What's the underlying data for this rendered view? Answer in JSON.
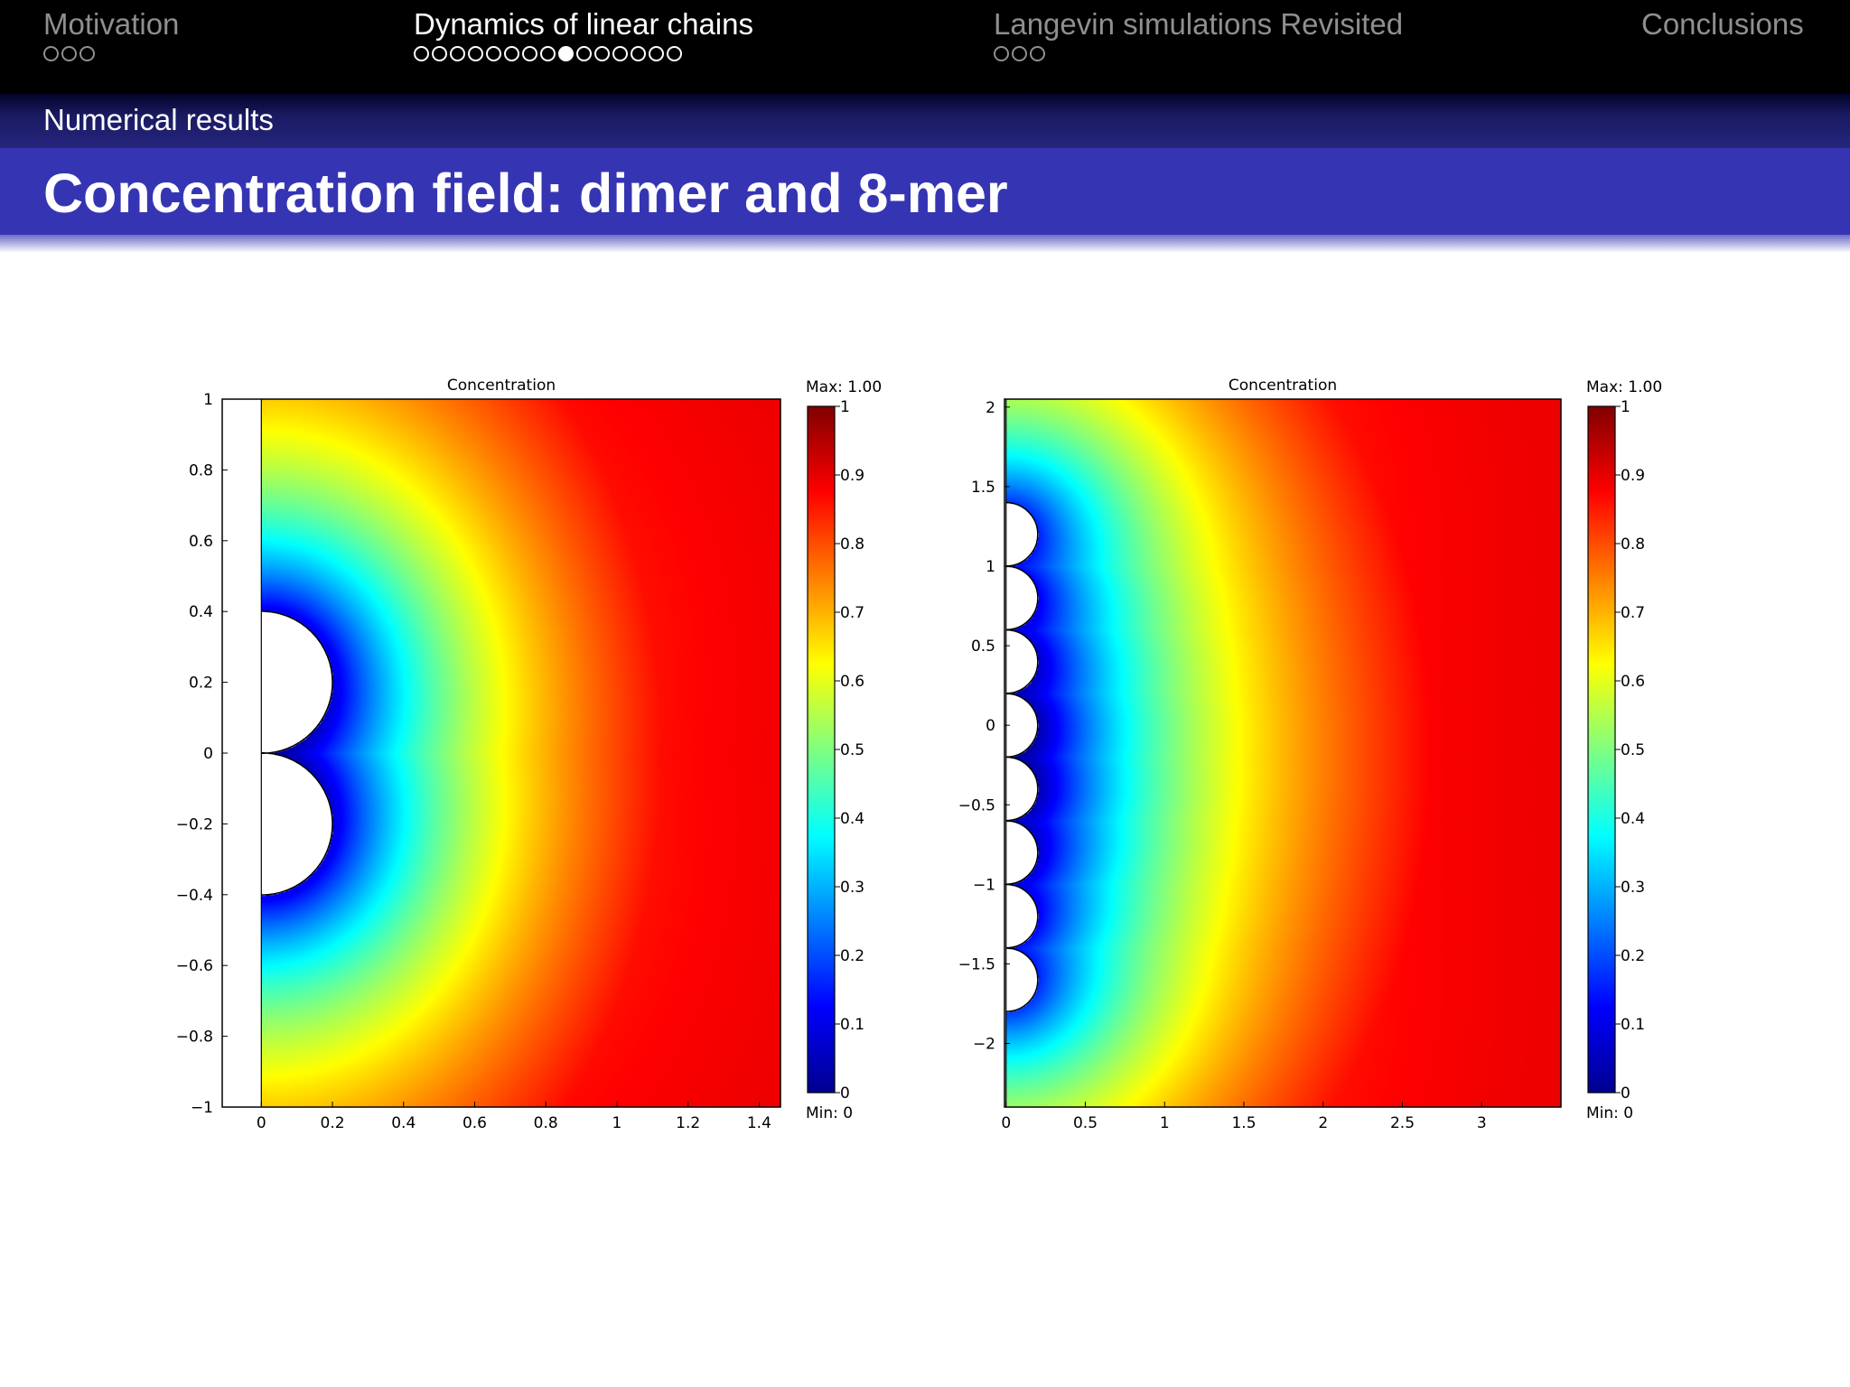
{
  "nav": {
    "sections": [
      {
        "title": "Motivation",
        "dots": 3,
        "current": -1
      },
      {
        "title": "Dynamics of linear chains",
        "dots": 15,
        "current": 8
      },
      {
        "title": "Langevin simulations Revisited",
        "dots": 3,
        "current": -1
      },
      {
        "title": "Conclusions",
        "dots": 0,
        "current": -1
      }
    ]
  },
  "subsection": "Numerical results",
  "frame_title": "Concentration field: dimer and 8-mer",
  "colors": {
    "nav_bg": "#000000",
    "nav_inactive": "#8f8f8f",
    "nav_active": "#ffffff",
    "subbar": "#25257e",
    "titlebar": "#3535b3",
    "colormap": [
      "#00008f",
      "#0000ff",
      "#00ffff",
      "#ffff00",
      "#ff0000",
      "#800000"
    ]
  },
  "chart_data": [
    {
      "type": "heatmap",
      "title": "Concentration",
      "xlim": [
        -0.11,
        1.46
      ],
      "ylim": [
        -1,
        1
      ],
      "xticks": [
        "0",
        "0.2",
        "0.4",
        "0.6",
        "0.8",
        "1",
        "1.2",
        "1.4"
      ],
      "xtick_values": [
        0,
        0.2,
        0.4,
        0.6,
        0.8,
        1,
        1.2,
        1.4
      ],
      "yticks": [
        "1",
        "0.8",
        "0.6",
        "0.4",
        "0.2",
        "0",
        "−0.2",
        "−0.4",
        "−0.6",
        "−0.8",
        "−1"
      ],
      "ytick_values": [
        1,
        0.8,
        0.6,
        0.4,
        0.2,
        0,
        -0.2,
        -0.4,
        -0.6,
        -0.8,
        -1
      ],
      "domain_xrange": [
        0,
        1.46
      ],
      "spheres": {
        "count": 2,
        "radius": 0.2,
        "centers_y": [
          0.2,
          -0.2
        ]
      },
      "colorbar": {
        "max_label": "Max: 1.00",
        "min_label": "Min: 0",
        "ticks": [
          "1",
          "0.9",
          "0.8",
          "0.7",
          "0.6",
          "0.5",
          "0.4",
          "0.3",
          "0.2",
          "0.1",
          "0"
        ],
        "tick_values": [
          1,
          0.9,
          0.8,
          0.7,
          0.6,
          0.5,
          0.4,
          0.3,
          0.2,
          0.1,
          0
        ],
        "range": [
          0,
          1
        ]
      }
    },
    {
      "type": "heatmap",
      "title": "Concentration",
      "xlim": [
        -0.01,
        3.5
      ],
      "ylim": [
        -2.4,
        2.05
      ],
      "xticks": [
        "0",
        "0.5",
        "1",
        "1.5",
        "2",
        "2.5",
        "3"
      ],
      "xtick_values": [
        0,
        0.5,
        1,
        1.5,
        2,
        2.5,
        3
      ],
      "yticks": [
        "2",
        "1.5",
        "1",
        "0.5",
        "0",
        "−0.5",
        "−1",
        "−1.5",
        "−2"
      ],
      "ytick_values": [
        2,
        1.5,
        1,
        0.5,
        0,
        -0.5,
        -1,
        -1.5,
        -2
      ],
      "domain_xrange": [
        0,
        3.5
      ],
      "spheres": {
        "count": 8,
        "radius": 0.2,
        "centers_y": [
          1.2,
          0.8,
          0.4,
          0,
          -0.4,
          -0.8,
          -1.2,
          -1.6
        ]
      },
      "colorbar": {
        "max_label": "Max: 1.00",
        "min_label": "Min: 0",
        "ticks": [
          "1",
          "0.9",
          "0.8",
          "0.7",
          "0.6",
          "0.5",
          "0.4",
          "0.3",
          "0.2",
          "0.1",
          "0"
        ],
        "tick_values": [
          1,
          0.9,
          0.8,
          0.7,
          0.6,
          0.5,
          0.4,
          0.3,
          0.2,
          0.1,
          0
        ],
        "range": [
          0,
          1
        ]
      }
    }
  ]
}
